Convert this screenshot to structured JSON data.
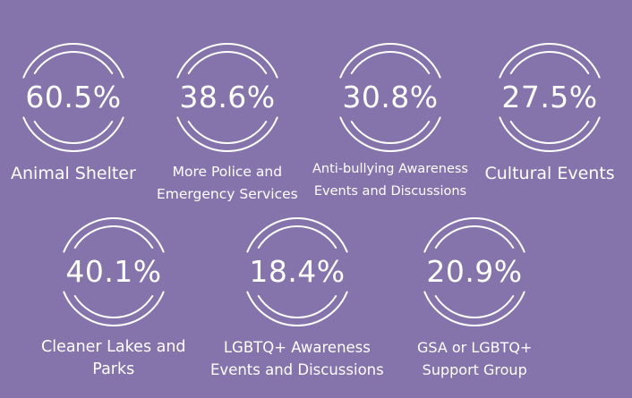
{
  "chart_data": {
    "type": "table",
    "title": "",
    "items": [
      {
        "value": "60.5%",
        "label_lines": [
          "Animal Shelter"
        ]
      },
      {
        "value": "38.6%",
        "label_lines": [
          "More Police and",
          "Emergency Services"
        ]
      },
      {
        "value": "30.8%",
        "label_lines": [
          "Anti-bullying Awareness",
          "Events and Discussions"
        ]
      },
      {
        "value": "27.5%",
        "label_lines": [
          "Cultural Events"
        ]
      },
      {
        "value": "40.1%",
        "label_lines": [
          "Cleaner Lakes and",
          "Parks"
        ]
      },
      {
        "value": "18.4%",
        "label_lines": [
          "LGBTQ+ Awareness",
          "Events and Discussions"
        ]
      },
      {
        "value": "20.9%",
        "label_lines": [
          "GSA or LGBTQ+",
          "Support Group"
        ]
      }
    ]
  },
  "colors": {
    "background": "#8474ab",
    "foreground": "#ffffff"
  }
}
